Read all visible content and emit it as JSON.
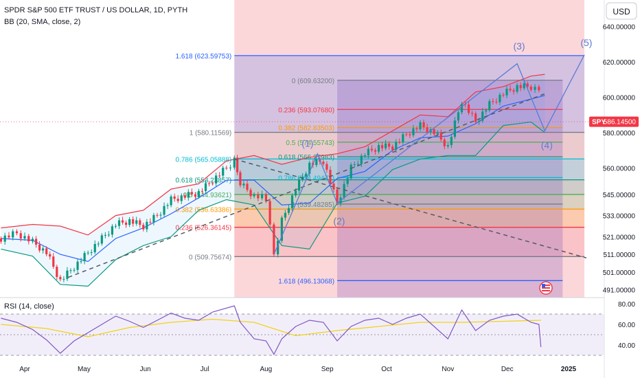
{
  "header": {
    "title": "SPDR S&P 500 ETF TRUST / US DOLLAR, 1D, PYTH",
    "indicator": "BB (20, SMA, close, 2)",
    "currency": "USD"
  },
  "price": {
    "label": "SPY",
    "value": "586.14500",
    "numeric": 586.145,
    "color": "#f23645"
  },
  "chart_data": {
    "type": "line",
    "ylim": [
      486,
      648
    ],
    "y_ticks": [
      {
        "v": 640,
        "t": "640.00000"
      },
      {
        "v": 620,
        "t": "620.00000"
      },
      {
        "v": 600,
        "t": "600.00000"
      },
      {
        "v": 580,
        "t": "580.00000"
      },
      {
        "v": 560,
        "t": "560.00000"
      },
      {
        "v": 545,
        "t": "545.00000"
      },
      {
        "v": 533,
        "t": "533.00000"
      },
      {
        "v": 521,
        "t": "521.00000"
      },
      {
        "v": 511,
        "t": "511.00000"
      },
      {
        "v": 501,
        "t": "501.00000"
      },
      {
        "v": 491,
        "t": "491.00000"
      }
    ],
    "x_ticks": [
      "Apr",
      "May",
      "Jun",
      "Jul",
      "Aug",
      "Sep",
      "Oct",
      "Nov",
      "Dec",
      "2025"
    ],
    "price_series": [
      {
        "d": "2024-03-20",
        "c": 520
      },
      {
        "d": "2024-03-28",
        "c": 523
      },
      {
        "d": "2024-04-05",
        "c": 518
      },
      {
        "d": "2024-04-12",
        "c": 512
      },
      {
        "d": "2024-04-19",
        "c": 496
      },
      {
        "d": "2024-04-26",
        "c": 504
      },
      {
        "d": "2024-05-03",
        "c": 512
      },
      {
        "d": "2024-05-10",
        "c": 520
      },
      {
        "d": "2024-05-17",
        "c": 528
      },
      {
        "d": "2024-05-24",
        "c": 530
      },
      {
        "d": "2024-05-31",
        "c": 527
      },
      {
        "d": "2024-06-07",
        "c": 533
      },
      {
        "d": "2024-06-14",
        "c": 542
      },
      {
        "d": "2024-06-21",
        "c": 544
      },
      {
        "d": "2024-06-28",
        "c": 546
      },
      {
        "d": "2024-07-05",
        "c": 553
      },
      {
        "d": "2024-07-12",
        "c": 560
      },
      {
        "d": "2024-07-16",
        "c": 564
      },
      {
        "d": "2024-07-19",
        "c": 551
      },
      {
        "d": "2024-07-26",
        "c": 544
      },
      {
        "d": "2024-08-01",
        "c": 543
      },
      {
        "d": "2024-08-05",
        "c": 511
      },
      {
        "d": "2024-08-09",
        "c": 530
      },
      {
        "d": "2024-08-16",
        "c": 548
      },
      {
        "d": "2024-08-23",
        "c": 562
      },
      {
        "d": "2024-08-30",
        "c": 564
      },
      {
        "d": "2024-09-06",
        "c": 540
      },
      {
        "d": "2024-09-13",
        "c": 560
      },
      {
        "d": "2024-09-20",
        "c": 568
      },
      {
        "d": "2024-09-27",
        "c": 572
      },
      {
        "d": "2024-10-04",
        "c": 572
      },
      {
        "d": "2024-10-11",
        "c": 579
      },
      {
        "d": "2024-10-18",
        "c": 584
      },
      {
        "d": "2024-10-25",
        "c": 580
      },
      {
        "d": "2024-11-01",
        "c": 572
      },
      {
        "d": "2024-11-08",
        "c": 598
      },
      {
        "d": "2024-11-15",
        "c": 586
      },
      {
        "d": "2024-11-22",
        "c": 596
      },
      {
        "d": "2024-11-29",
        "c": 602
      },
      {
        "d": "2024-12-06",
        "c": 606
      },
      {
        "d": "2024-12-13",
        "c": 606
      },
      {
        "d": "2024-12-17",
        "c": 604
      },
      {
        "d": "2024-12-18",
        "c": 586
      }
    ],
    "bb_upper": [
      {
        "d": "2024-03-20",
        "v": 526
      },
      {
        "d": "2024-04-05",
        "v": 528
      },
      {
        "d": "2024-04-19",
        "v": 527
      },
      {
        "d": "2024-05-03",
        "v": 522
      },
      {
        "d": "2024-05-17",
        "v": 533
      },
      {
        "d": "2024-05-31",
        "v": 536
      },
      {
        "d": "2024-06-14",
        "v": 548
      },
      {
        "d": "2024-06-28",
        "v": 551
      },
      {
        "d": "2024-07-12",
        "v": 564
      },
      {
        "d": "2024-07-26",
        "v": 567
      },
      {
        "d": "2024-08-09",
        "v": 562
      },
      {
        "d": "2024-08-23",
        "v": 566
      },
      {
        "d": "2024-09-06",
        "v": 568
      },
      {
        "d": "2024-09-20",
        "v": 572
      },
      {
        "d": "2024-10-04",
        "v": 581
      },
      {
        "d": "2024-10-18",
        "v": 590
      },
      {
        "d": "2024-11-01",
        "v": 589
      },
      {
        "d": "2024-11-15",
        "v": 603
      },
      {
        "d": "2024-11-29",
        "v": 606
      },
      {
        "d": "2024-12-13",
        "v": 612
      },
      {
        "d": "2024-12-20",
        "v": 613
      }
    ],
    "bb_lower": [
      {
        "d": "2024-03-20",
        "v": 514
      },
      {
        "d": "2024-04-05",
        "v": 510
      },
      {
        "d": "2024-04-19",
        "v": 494
      },
      {
        "d": "2024-05-03",
        "v": 493
      },
      {
        "d": "2024-05-17",
        "v": 508
      },
      {
        "d": "2024-05-31",
        "v": 516
      },
      {
        "d": "2024-06-14",
        "v": 521
      },
      {
        "d": "2024-06-28",
        "v": 536
      },
      {
        "d": "2024-07-12",
        "v": 542
      },
      {
        "d": "2024-07-26",
        "v": 539
      },
      {
        "d": "2024-08-09",
        "v": 516
      },
      {
        "d": "2024-08-23",
        "v": 514
      },
      {
        "d": "2024-09-06",
        "v": 540
      },
      {
        "d": "2024-09-20",
        "v": 544
      },
      {
        "d": "2024-10-04",
        "v": 559
      },
      {
        "d": "2024-10-18",
        "v": 565
      },
      {
        "d": "2024-11-01",
        "v": 567
      },
      {
        "d": "2024-11-15",
        "v": 567
      },
      {
        "d": "2024-11-29",
        "v": 584
      },
      {
        "d": "2024-12-13",
        "v": 586
      },
      {
        "d": "2024-12-20",
        "v": 580
      }
    ],
    "bb_basis": [
      {
        "d": "2024-03-20",
        "v": 520
      },
      {
        "d": "2024-04-05",
        "v": 519
      },
      {
        "d": "2024-04-19",
        "v": 511
      },
      {
        "d": "2024-05-03",
        "v": 507
      },
      {
        "d": "2024-05-17",
        "v": 520
      },
      {
        "d": "2024-05-31",
        "v": 526
      },
      {
        "d": "2024-06-14",
        "v": 534
      },
      {
        "d": "2024-06-28",
        "v": 543
      },
      {
        "d": "2024-07-12",
        "v": 553
      },
      {
        "d": "2024-07-26",
        "v": 553
      },
      {
        "d": "2024-08-09",
        "v": 539
      },
      {
        "d": "2024-08-23",
        "v": 540
      },
      {
        "d": "2024-09-06",
        "v": 554
      },
      {
        "d": "2024-09-20",
        "v": 558
      },
      {
        "d": "2024-10-04",
        "v": 570
      },
      {
        "d": "2024-10-18",
        "v": 577
      },
      {
        "d": "2024-11-01",
        "v": 578
      },
      {
        "d": "2024-11-15",
        "v": 585
      },
      {
        "d": "2024-11-29",
        "v": 595
      },
      {
        "d": "2024-12-13",
        "v": 599
      },
      {
        "d": "2024-12-20",
        "v": 601
      }
    ],
    "fib_left": {
      "x_start": "2024-07-16",
      "x_end": "2025-01-09",
      "levels": [
        {
          "label": "1.618 (623.59753)",
          "v": 623.59753,
          "color": "#2962ff"
        },
        {
          "label": "1 (580.11569)",
          "v": 580.11569,
          "color": "#787b86"
        },
        {
          "label": "0.786 (565.05888)",
          "v": 565.05888,
          "color": "#00bcd4"
        },
        {
          "label": "0.618 (553.23857)",
          "v": 553.23857,
          "color": "#089981"
        },
        {
          "label": "0.5 (544.93621)",
          "v": 544.93621,
          "color": "#4caf50"
        },
        {
          "label": "0.382 (536.63386)",
          "v": 536.63386,
          "color": "#ff9800"
        },
        {
          "label": "0.236 (526.36145)",
          "v": 526.36145,
          "color": "#f23645"
        },
        {
          "label": "0 (509.75674)",
          "v": 509.75674,
          "color": "#787b86"
        }
      ]
    },
    "fib_right": {
      "x_start": "2024-09-06",
      "x_end": "2024-12-29",
      "levels": [
        {
          "label": "0 (609.63200)",
          "v": 609.632,
          "color": "#787b86"
        },
        {
          "label": "0.236 (593.07680)",
          "v": 593.0768,
          "color": "#f23645"
        },
        {
          "label": "0.382 (582.83503)",
          "v": 582.83503,
          "color": "#ff9800"
        },
        {
          "label": "0.5 (574.55743)",
          "v": 574.55743,
          "color": "#4caf50"
        },
        {
          "label": "0.618 (566.27983)",
          "v": 566.27983,
          "color": "#089981"
        },
        {
          "label": "0.786 (554.49477)",
          "v": 554.49477,
          "color": "#00bcd4"
        },
        {
          "label": "1 (539.48285)",
          "v": 539.48285,
          "color": "#787b86"
        },
        {
          "label": "1.618 (496.13068)",
          "v": 496.13068,
          "color": "#2962ff"
        }
      ]
    },
    "wave_path": [
      {
        "d": "2024-08-05",
        "v": 511
      },
      {
        "d": "2024-08-27",
        "v": 568
      },
      {
        "d": "2024-09-06",
        "v": 540
      },
      {
        "d": "2024-12-06",
        "v": 619
      },
      {
        "d": "2024-12-20",
        "v": 581
      },
      {
        "d": "2025-01-09",
        "v": 624
      }
    ],
    "wave_labels": [
      {
        "t": "(1)",
        "d": "2024-08-22",
        "v": 572
      },
      {
        "t": "(2)",
        "d": "2024-09-07",
        "v": 528
      },
      {
        "t": "(3)",
        "d": "2024-12-07",
        "v": 627
      },
      {
        "t": "(4)",
        "d": "2024-12-21",
        "v": 571
      },
      {
        "t": "(5)",
        "d": "2025-01-10",
        "v": 629
      }
    ],
    "trend_dashed_up": [
      {
        "d": "2024-04-23",
        "v": 498
      },
      {
        "d": "2024-12-20",
        "v": 602
      }
    ],
    "trend_dashed_down": [
      {
        "d": "2024-07-16",
        "v": 565
      },
      {
        "d": "2025-01-10",
        "v": 509
      }
    ],
    "rsi": {
      "label": "RSI (14, close)",
      "ylim": [
        28,
        88
      ],
      "ticks": [
        {
          "v": 80,
          "t": "80.00"
        },
        {
          "v": 60,
          "t": "60.00"
        },
        {
          "v": 40,
          "t": "40.00"
        }
      ],
      "bands": [
        70,
        50,
        30
      ],
      "values": [
        {
          "d": "2024-03-20",
          "v": 66
        },
        {
          "d": "2024-03-28",
          "v": 62
        },
        {
          "d": "2024-04-05",
          "v": 55
        },
        {
          "d": "2024-04-12",
          "v": 45
        },
        {
          "d": "2024-04-19",
          "v": 32
        },
        {
          "d": "2024-04-26",
          "v": 44
        },
        {
          "d": "2024-05-03",
          "v": 52
        },
        {
          "d": "2024-05-10",
          "v": 60
        },
        {
          "d": "2024-05-17",
          "v": 68
        },
        {
          "d": "2024-05-24",
          "v": 63
        },
        {
          "d": "2024-05-31",
          "v": 57
        },
        {
          "d": "2024-06-07",
          "v": 64
        },
        {
          "d": "2024-06-14",
          "v": 71
        },
        {
          "d": "2024-06-21",
          "v": 66
        },
        {
          "d": "2024-06-28",
          "v": 64
        },
        {
          "d": "2024-07-05",
          "v": 72
        },
        {
          "d": "2024-07-16",
          "v": 78
        },
        {
          "d": "2024-07-19",
          "v": 62
        },
        {
          "d": "2024-07-26",
          "v": 46
        },
        {
          "d": "2024-08-01",
          "v": 44
        },
        {
          "d": "2024-08-05",
          "v": 31
        },
        {
          "d": "2024-08-09",
          "v": 46
        },
        {
          "d": "2024-08-16",
          "v": 58
        },
        {
          "d": "2024-08-23",
          "v": 64
        },
        {
          "d": "2024-08-30",
          "v": 62
        },
        {
          "d": "2024-09-06",
          "v": 44
        },
        {
          "d": "2024-09-13",
          "v": 58
        },
        {
          "d": "2024-09-20",
          "v": 64
        },
        {
          "d": "2024-09-27",
          "v": 66
        },
        {
          "d": "2024-10-04",
          "v": 60
        },
        {
          "d": "2024-10-11",
          "v": 66
        },
        {
          "d": "2024-10-18",
          "v": 70
        },
        {
          "d": "2024-10-25",
          "v": 58
        },
        {
          "d": "2024-11-01",
          "v": 46
        },
        {
          "d": "2024-11-08",
          "v": 74
        },
        {
          "d": "2024-11-15",
          "v": 54
        },
        {
          "d": "2024-11-22",
          "v": 64
        },
        {
          "d": "2024-11-29",
          "v": 68
        },
        {
          "d": "2024-12-06",
          "v": 70
        },
        {
          "d": "2024-12-13",
          "v": 62
        },
        {
          "d": "2024-12-17",
          "v": 60
        },
        {
          "d": "2024-12-18",
          "v": 38
        }
      ],
      "ma": [
        {
          "d": "2024-03-20",
          "v": 60
        },
        {
          "d": "2024-04-12",
          "v": 56
        },
        {
          "d": "2024-05-03",
          "v": 48
        },
        {
          "d": "2024-05-24",
          "v": 57
        },
        {
          "d": "2024-06-14",
          "v": 62
        },
        {
          "d": "2024-07-05",
          "v": 65
        },
        {
          "d": "2024-07-26",
          "v": 62
        },
        {
          "d": "2024-08-16",
          "v": 49
        },
        {
          "d": "2024-09-06",
          "v": 54
        },
        {
          "d": "2024-09-27",
          "v": 58
        },
        {
          "d": "2024-10-18",
          "v": 62
        },
        {
          "d": "2024-11-08",
          "v": 62
        },
        {
          "d": "2024-11-29",
          "v": 63
        },
        {
          "d": "2024-12-18",
          "v": 64
        }
      ]
    }
  },
  "colors": {
    "upper_band": "#f23645",
    "lower_band": "#089981",
    "basis": "#2962ff",
    "rsi_line": "#7e57c2",
    "rsi_ma": "#f0d31a",
    "wave": "#5b7bd5",
    "axis_text": "#131722"
  }
}
